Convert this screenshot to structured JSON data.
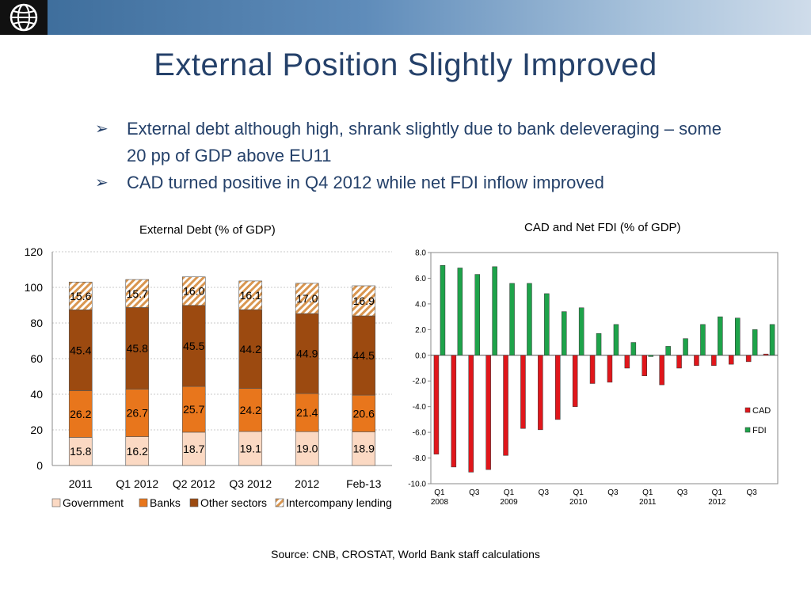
{
  "slide": {
    "title": "External Position Slightly Improved",
    "bullets": [
      "External debt although high, shrank slightly due to bank deleveraging – some 20 pp of GDP above EU11",
      "CAD turned positive in Q4 2012 while net FDI inflow improved"
    ],
    "bullet_symbol": "➢",
    "source": "Source: CNB, CROSTAT, World Bank staff calculations"
  },
  "colors": {
    "header": "#3a6a98",
    "title": "#25416a",
    "government": "#fbd9c3",
    "banks": "#e8761c",
    "other_sectors": "#9c4a10",
    "intercompany": "#d99650",
    "cad": "#e0161b",
    "fdi": "#1ea34a"
  },
  "chart_data": [
    {
      "type": "bar",
      "stacked": true,
      "title": "External Debt (% of GDP)",
      "categories": [
        "2011",
        "Q1 2012",
        "Q2 2012",
        "Q3 2012",
        "2012",
        "Feb-13"
      ],
      "ylim": [
        0,
        120
      ],
      "yticks": [
        "0",
        "20",
        "40",
        "60",
        "80",
        "100",
        "120"
      ],
      "grid": true,
      "legend": "bottom",
      "series": [
        {
          "name": "Government",
          "values": [
            15.8,
            16.2,
            18.7,
            19.1,
            19.0,
            18.9
          ],
          "labels": [
            "15.8",
            "16.2",
            "18.7",
            "19.1",
            "19.0",
            "18.9"
          ]
        },
        {
          "name": "Banks",
          "values": [
            26.2,
            26.7,
            25.7,
            24.2,
            21.4,
            20.6
          ],
          "labels": [
            "26.2",
            "26.7",
            "25.7",
            "24.2",
            "21.4",
            "20.6"
          ]
        },
        {
          "name": "Other sectors",
          "values": [
            45.4,
            45.8,
            45.5,
            44.2,
            44.9,
            44.5
          ],
          "labels": [
            "45.4",
            "45.8",
            "45.5",
            "44.2",
            "44.9",
            "44.5"
          ]
        },
        {
          "name": "Intercompany lending",
          "values": [
            15.6,
            15.7,
            16.0,
            16.1,
            17.0,
            16.9
          ],
          "labels": [
            "15.6",
            "15.7",
            "16.0",
            "16.1",
            "17.0",
            "16.9"
          ]
        }
      ]
    },
    {
      "type": "bar",
      "title": "CAD and Net FDI (% of GDP)",
      "x": [
        "Q1 2008",
        "Q2 2008",
        "Q3 2008",
        "Q4 2008",
        "Q1 2009",
        "Q2 2009",
        "Q3 2009",
        "Q4 2009",
        "Q1 2010",
        "Q2 2010",
        "Q3 2010",
        "Q4 2010",
        "Q1 2011",
        "Q2 2011",
        "Q3 2011",
        "Q4 2011",
        "Q1 2012",
        "Q2 2012",
        "Q3 2012",
        "Q4 2012"
      ],
      "tick_labels": [
        {
          "q": "Q1",
          "year": "2008"
        },
        {
          "q": "Q3",
          "year": ""
        },
        {
          "q": "Q1",
          "year": "2009"
        },
        {
          "q": "Q3",
          "year": ""
        },
        {
          "q": "Q1",
          "year": "2010"
        },
        {
          "q": "Q3",
          "year": ""
        },
        {
          "q": "Q1",
          "year": "2011"
        },
        {
          "q": "Q3",
          "year": ""
        },
        {
          "q": "Q1",
          "year": "2012"
        },
        {
          "q": "Q3",
          "year": ""
        }
      ],
      "ylim": [
        -10,
        8
      ],
      "yticks": [
        "-10.0",
        "-8.0",
        "-6.0",
        "-4.0",
        "-2.0",
        "0.0",
        "2.0",
        "4.0",
        "6.0",
        "8.0"
      ],
      "grid": false,
      "legend": "right",
      "series": [
        {
          "name": "CAD",
          "values": [
            -7.7,
            -8.7,
            -9.1,
            -8.9,
            -7.8,
            -5.7,
            -5.8,
            -5.0,
            -4.0,
            -2.2,
            -2.1,
            -1.0,
            -1.6,
            -2.3,
            -1.0,
            -0.8,
            -0.8,
            -0.7,
            -0.5,
            0.1
          ]
        },
        {
          "name": "FDI",
          "values": [
            7.0,
            6.8,
            6.3,
            6.9,
            5.6,
            5.6,
            4.8,
            3.4,
            3.7,
            1.7,
            2.4,
            1.0,
            -0.1,
            0.7,
            1.3,
            2.4,
            3.0,
            2.9,
            2.0,
            2.4
          ]
        }
      ]
    }
  ]
}
